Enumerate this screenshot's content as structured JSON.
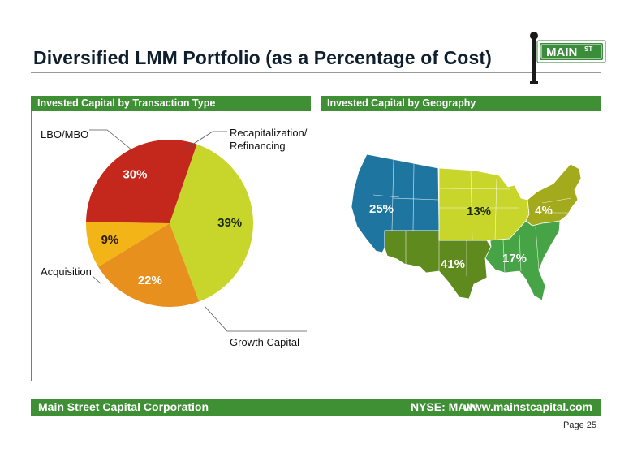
{
  "title": "Diversified LMM Portfolio (as a Percentage of Cost)",
  "logo": {
    "text": "MAIN",
    "superscript": "ST"
  },
  "panels": {
    "left_header": "Invested Capital by Transaction Type",
    "right_header": "Invested Capital by Geography"
  },
  "chart_data": [
    {
      "type": "pie",
      "title": "Invested Capital by Transaction Type",
      "slices": [
        {
          "label": "Recapitalization/ Refinancing",
          "value": 39,
          "display": "39%",
          "color": "#c8d52a"
        },
        {
          "label": "Growth Capital",
          "value": 22,
          "display": "22%",
          "color": "#e8901e"
        },
        {
          "label": "Acquisition",
          "value": 9,
          "display": "9%",
          "color": "#f2b416"
        },
        {
          "label": "LBO/MBO",
          "value": 30,
          "display": "30%",
          "color": "#c4281c"
        }
      ]
    },
    {
      "type": "map",
      "title": "Invested Capital by Geography",
      "regions": [
        {
          "value": 25,
          "display": "25%",
          "color": "#1e76a0"
        },
        {
          "value": 13,
          "display": "13%",
          "color": "#c8d52a"
        },
        {
          "value": 4,
          "display": "4%",
          "color": "#a3aa1c"
        },
        {
          "value": 41,
          "display": "41%",
          "color": "#5f8a1d"
        },
        {
          "value": 17,
          "display": "17%",
          "color": "#46a346"
        }
      ]
    }
  ],
  "footer": {
    "company": "Main Street Capital Corporation",
    "ticker": "NYSE: MAIN",
    "website": "www.mainstcapital.com"
  },
  "page_number": "Page 25"
}
